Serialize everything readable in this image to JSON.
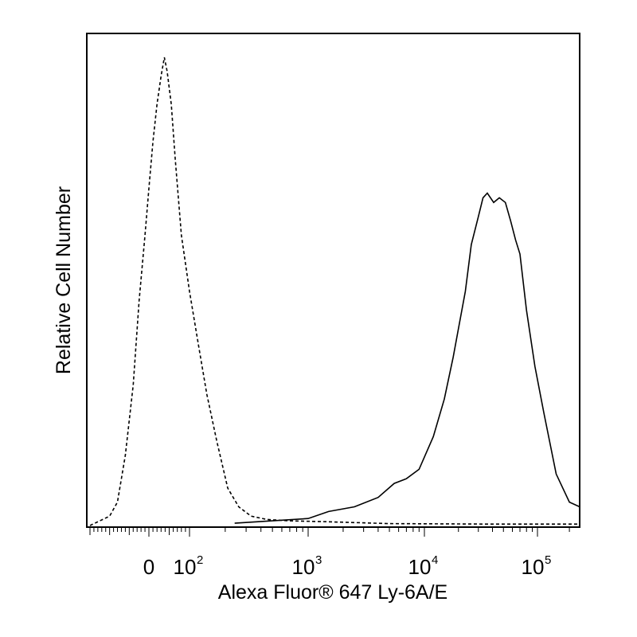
{
  "chart_data": {
    "type": "line",
    "xlabel": "Alexa Fluor® 647 Ly-6A/E",
    "ylabel": "Relative Cell Number",
    "x_scale": "biexponential (logicle)",
    "x_ticks": [
      {
        "value": 0,
        "label": "0",
        "exponent": ""
      },
      {
        "value": 100,
        "label": "10",
        "exponent": "2"
      },
      {
        "value": 1000,
        "label": "10",
        "exponent": "3"
      },
      {
        "value": 10000,
        "label": "10",
        "exponent": "4"
      },
      {
        "value": 100000,
        "label": "10",
        "exponent": "5"
      }
    ],
    "ylim": [
      0,
      100
    ],
    "grid": false,
    "legend": "none",
    "series": [
      {
        "style": "dashed",
        "color": "#000000",
        "points": [
          [
            -150,
            0
          ],
          [
            -100,
            2
          ],
          [
            -80,
            5
          ],
          [
            -60,
            15
          ],
          [
            -40,
            30
          ],
          [
            -25,
            48
          ],
          [
            -10,
            62
          ],
          [
            0,
            72
          ],
          [
            10,
            82
          ],
          [
            20,
            90
          ],
          [
            30,
            96
          ],
          [
            38,
            100
          ],
          [
            45,
            97
          ],
          [
            55,
            90
          ],
          [
            65,
            78
          ],
          [
            80,
            62
          ],
          [
            100,
            50
          ],
          [
            120,
            38
          ],
          [
            140,
            28
          ],
          [
            170,
            18
          ],
          [
            210,
            8
          ],
          [
            260,
            4
          ],
          [
            330,
            2
          ],
          [
            450,
            1.3
          ],
          [
            700,
            1
          ],
          [
            1500,
            0.8
          ],
          [
            5000,
            0.4
          ],
          [
            40000,
            0.3
          ],
          [
            250000,
            0.3
          ]
        ]
      },
      {
        "style": "solid",
        "color": "#000000",
        "points": [
          [
            240,
            0.5
          ],
          [
            500,
            1
          ],
          [
            1000,
            1.5
          ],
          [
            1500,
            3
          ],
          [
            2500,
            4
          ],
          [
            4000,
            6
          ],
          [
            5500,
            9
          ],
          [
            7000,
            10
          ],
          [
            9000,
            12
          ],
          [
            12000,
            19
          ],
          [
            15000,
            27
          ],
          [
            18000,
            36
          ],
          [
            20000,
            42
          ],
          [
            23000,
            50
          ],
          [
            26000,
            60
          ],
          [
            30000,
            66
          ],
          [
            33000,
            70
          ],
          [
            36000,
            71
          ],
          [
            41000,
            69
          ],
          [
            46000,
            70
          ],
          [
            52000,
            69
          ],
          [
            58000,
            65
          ],
          [
            64000,
            61
          ],
          [
            70000,
            58
          ],
          [
            80000,
            46
          ],
          [
            95000,
            34
          ],
          [
            115000,
            24
          ],
          [
            150000,
            11
          ],
          [
            200000,
            5
          ],
          [
            250000,
            4
          ]
        ]
      }
    ]
  }
}
